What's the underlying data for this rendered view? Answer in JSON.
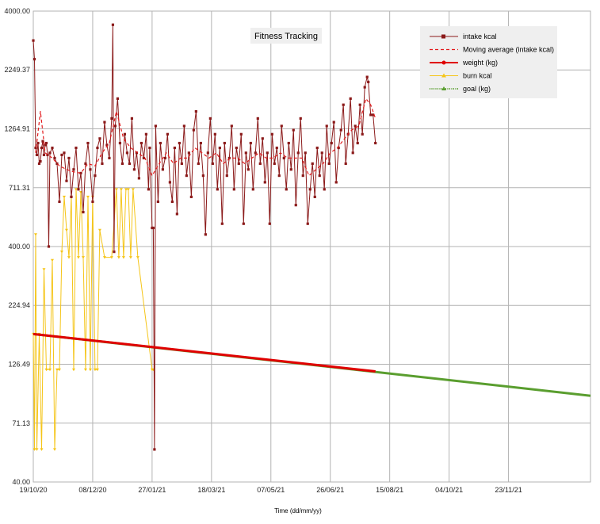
{
  "chart_data": {
    "type": "line",
    "title": "Fitness Tracking",
    "xlabel": "Time (dd/mm/yy)",
    "ylabel": "",
    "y_scale": "log",
    "ylim": [
      40,
      4000
    ],
    "x_range": [
      "2020-10-19",
      "2022-01-31"
    ],
    "grid": true,
    "legend_position": "top-right",
    "x_ticks": [
      "19/10/20",
      "08/12/20",
      "27/01/21",
      "18/03/21",
      "07/05/21",
      "26/06/21",
      "15/08/21",
      "04/10/21",
      "23/11/21"
    ],
    "y_ticks": [
      "40.00",
      "71.13",
      "126.49",
      "224.94",
      "400.00",
      "711.31",
      "1264.91",
      "2249.37",
      "4000.00"
    ],
    "series": [
      {
        "name": "intake kcal",
        "color": "#8b1a1a",
        "style": "solid-square-markers",
        "points": [
          [
            "2020-10-19",
            3000
          ],
          [
            "2020-10-20",
            2500
          ],
          [
            "2020-10-21",
            1050
          ],
          [
            "2020-10-22",
            980
          ],
          [
            "2020-10-23",
            1100
          ],
          [
            "2020-10-24",
            900
          ],
          [
            "2020-10-25",
            920
          ],
          [
            "2020-10-26",
            1050
          ],
          [
            "2020-10-27",
            1120
          ],
          [
            "2020-10-28",
            980
          ],
          [
            "2020-10-29",
            1080
          ],
          [
            "2020-10-30",
            1100
          ],
          [
            "2020-10-31",
            980
          ],
          [
            "2020-11-01",
            400
          ],
          [
            "2020-11-02",
            1000
          ],
          [
            "2020-11-04",
            1050
          ],
          [
            "2020-11-06",
            950
          ],
          [
            "2020-11-08",
            900
          ],
          [
            "2020-11-10",
            620
          ],
          [
            "2020-11-12",
            980
          ],
          [
            "2020-11-14",
            1000
          ],
          [
            "2020-11-16",
            760
          ],
          [
            "2020-11-18",
            950
          ],
          [
            "2020-11-20",
            650
          ],
          [
            "2020-11-22",
            850
          ],
          [
            "2020-11-24",
            1050
          ],
          [
            "2020-11-26",
            700
          ],
          [
            "2020-11-28",
            820
          ],
          [
            "2020-11-30",
            560
          ],
          [
            "2020-12-02",
            900
          ],
          [
            "2020-12-04",
            1100
          ],
          [
            "2020-12-06",
            850
          ],
          [
            "2020-12-08",
            620
          ],
          [
            "2020-12-10",
            800
          ],
          [
            "2020-12-12",
            1050
          ],
          [
            "2020-12-14",
            1150
          ],
          [
            "2020-12-16",
            900
          ],
          [
            "2020-12-18",
            1350
          ],
          [
            "2020-12-20",
            1080
          ],
          [
            "2020-12-22",
            950
          ],
          [
            "2020-12-24",
            1400
          ],
          [
            "2020-12-25",
            3500
          ],
          [
            "2020-12-26",
            380
          ],
          [
            "2020-12-27",
            1300
          ],
          [
            "2020-12-29",
            1700
          ],
          [
            "2020-12-31",
            1100
          ],
          [
            "2021-01-02",
            900
          ],
          [
            "2021-01-04",
            1200
          ],
          [
            "2021-01-06",
            1000
          ],
          [
            "2021-01-08",
            900
          ],
          [
            "2021-01-10",
            1400
          ],
          [
            "2021-01-12",
            850
          ],
          [
            "2021-01-14",
            1000
          ],
          [
            "2021-01-16",
            780
          ],
          [
            "2021-01-18",
            1100
          ],
          [
            "2021-01-20",
            950
          ],
          [
            "2021-01-22",
            1200
          ],
          [
            "2021-01-24",
            700
          ],
          [
            "2021-01-25",
            1050
          ],
          [
            "2021-01-27",
            480
          ],
          [
            "2021-01-28",
            480
          ],
          [
            "2021-01-29",
            55
          ],
          [
            "2021-01-30",
            1300
          ],
          [
            "2021-02-01",
            620
          ],
          [
            "2021-02-03",
            1100
          ],
          [
            "2021-02-05",
            850
          ],
          [
            "2021-02-07",
            950
          ],
          [
            "2021-02-09",
            1200
          ],
          [
            "2021-02-11",
            750
          ],
          [
            "2021-02-13",
            620
          ],
          [
            "2021-02-15",
            1050
          ],
          [
            "2021-02-17",
            550
          ],
          [
            "2021-02-19",
            1100
          ],
          [
            "2021-02-21",
            900
          ],
          [
            "2021-02-23",
            1300
          ],
          [
            "2021-02-25",
            800
          ],
          [
            "2021-02-27",
            1000
          ],
          [
            "2021-03-01",
            650
          ],
          [
            "2021-03-03",
            1250
          ],
          [
            "2021-03-05",
            1500
          ],
          [
            "2021-03-07",
            900
          ],
          [
            "2021-03-09",
            1100
          ],
          [
            "2021-03-11",
            800
          ],
          [
            "2021-03-13",
            450
          ],
          [
            "2021-03-15",
            1000
          ],
          [
            "2021-03-17",
            1400
          ],
          [
            "2021-03-19",
            900
          ],
          [
            "2021-03-21",
            1200
          ],
          [
            "2021-03-23",
            700
          ],
          [
            "2021-03-25",
            1050
          ],
          [
            "2021-03-27",
            500
          ],
          [
            "2021-03-29",
            1100
          ],
          [
            "2021-03-31",
            800
          ],
          [
            "2021-04-02",
            950
          ],
          [
            "2021-04-04",
            1300
          ],
          [
            "2021-04-06",
            700
          ],
          [
            "2021-04-08",
            1050
          ],
          [
            "2021-04-10",
            900
          ],
          [
            "2021-04-12",
            1200
          ],
          [
            "2021-04-14",
            500
          ],
          [
            "2021-04-16",
            1000
          ],
          [
            "2021-04-18",
            850
          ],
          [
            "2021-04-20",
            1100
          ],
          [
            "2021-04-22",
            700
          ],
          [
            "2021-04-24",
            1000
          ],
          [
            "2021-04-26",
            1400
          ],
          [
            "2021-04-28",
            900
          ],
          [
            "2021-04-30",
            1150
          ],
          [
            "2021-05-02",
            750
          ],
          [
            "2021-05-04",
            1000
          ],
          [
            "2021-05-06",
            500
          ],
          [
            "2021-05-08",
            1200
          ],
          [
            "2021-05-10",
            900
          ],
          [
            "2021-05-12",
            1050
          ],
          [
            "2021-05-14",
            800
          ],
          [
            "2021-05-16",
            1300
          ],
          [
            "2021-05-18",
            950
          ],
          [
            "2021-05-20",
            700
          ],
          [
            "2021-05-22",
            1100
          ],
          [
            "2021-05-24",
            850
          ],
          [
            "2021-05-26",
            1250
          ],
          [
            "2021-05-28",
            600
          ],
          [
            "2021-05-30",
            1000
          ],
          [
            "2021-06-01",
            1400
          ],
          [
            "2021-06-03",
            800
          ],
          [
            "2021-06-05",
            1000
          ],
          [
            "2021-06-07",
            500
          ],
          [
            "2021-06-09",
            700
          ],
          [
            "2021-06-11",
            900
          ],
          [
            "2021-06-13",
            650
          ],
          [
            "2021-06-15",
            1050
          ],
          [
            "2021-06-17",
            800
          ],
          [
            "2021-06-19",
            1000
          ],
          [
            "2021-06-21",
            700
          ],
          [
            "2021-06-23",
            1300
          ],
          [
            "2021-06-25",
            900
          ],
          [
            "2021-06-27",
            1100
          ],
          [
            "2021-06-29",
            1350
          ],
          [
            "2021-07-01",
            750
          ],
          [
            "2021-07-03",
            1050
          ],
          [
            "2021-07-05",
            1250
          ],
          [
            "2021-07-07",
            1600
          ],
          [
            "2021-07-09",
            900
          ],
          [
            "2021-07-11",
            1200
          ],
          [
            "2021-07-13",
            1700
          ],
          [
            "2021-07-15",
            1000
          ],
          [
            "2021-07-17",
            1300
          ],
          [
            "2021-07-19",
            1100
          ],
          [
            "2021-07-21",
            1600
          ],
          [
            "2021-07-23",
            1200
          ],
          [
            "2021-07-25",
            1900
          ],
          [
            "2021-07-27",
            2100
          ],
          [
            "2021-07-28",
            2000
          ],
          [
            "2021-07-30",
            1450
          ],
          [
            "2021-08-01",
            1450
          ],
          [
            "2021-08-03",
            1100
          ]
        ]
      },
      {
        "name": "Moving average (intake kcal)",
        "color": "#e31a1c",
        "style": "dashed",
        "points": [
          [
            "2020-10-21",
            1000
          ],
          [
            "2020-10-25",
            1500
          ],
          [
            "2020-10-29",
            1000
          ],
          [
            "2020-11-04",
            950
          ],
          [
            "2020-11-10",
            880
          ],
          [
            "2020-11-16",
            850
          ],
          [
            "2020-11-22",
            830
          ],
          [
            "2020-11-28",
            820
          ],
          [
            "2020-12-04",
            900
          ],
          [
            "2020-12-10",
            880
          ],
          [
            "2020-12-16",
            1000
          ],
          [
            "2020-12-22",
            1100
          ],
          [
            "2020-12-28",
            1500
          ],
          [
            "2021-01-03",
            1150
          ],
          [
            "2021-01-09",
            1050
          ],
          [
            "2021-01-15",
            1000
          ],
          [
            "2021-01-21",
            950
          ],
          [
            "2021-01-27",
            800
          ],
          [
            "2021-02-02",
            900
          ],
          [
            "2021-02-08",
            1000
          ],
          [
            "2021-02-14",
            900
          ],
          [
            "2021-02-20",
            950
          ],
          [
            "2021-02-26",
            950
          ],
          [
            "2021-03-04",
            1050
          ],
          [
            "2021-03-10",
            1000
          ],
          [
            "2021-03-16",
            950
          ],
          [
            "2021-03-22",
            1000
          ],
          [
            "2021-03-28",
            900
          ],
          [
            "2021-04-03",
            950
          ],
          [
            "2021-04-09",
            950
          ],
          [
            "2021-04-15",
            900
          ],
          [
            "2021-04-21",
            950
          ],
          [
            "2021-04-27",
            1000
          ],
          [
            "2021-05-03",
            950
          ],
          [
            "2021-05-09",
            950
          ],
          [
            "2021-05-15",
            1000
          ],
          [
            "2021-05-21",
            950
          ],
          [
            "2021-05-27",
            950
          ],
          [
            "2021-06-02",
            950
          ],
          [
            "2021-06-08",
            800
          ],
          [
            "2021-06-14",
            850
          ],
          [
            "2021-06-20",
            900
          ],
          [
            "2021-06-26",
            1000
          ],
          [
            "2021-07-02",
            1050
          ],
          [
            "2021-07-08",
            1150
          ],
          [
            "2021-07-14",
            1250
          ],
          [
            "2021-07-20",
            1300
          ],
          [
            "2021-07-26",
            1700
          ],
          [
            "2021-07-30",
            1600
          ],
          [
            "2021-08-03",
            1400
          ]
        ]
      },
      {
        "name": "weight (kg)",
        "color": "#e00000",
        "style": "solid-thick",
        "points": [
          [
            "2020-10-19",
            170
          ],
          [
            "2021-08-03",
            118
          ]
        ]
      },
      {
        "name": "burn kcal",
        "color": "#f5c518",
        "style": "solid-triangle-markers",
        "points": [
          [
            "2020-10-19",
            170
          ],
          [
            "2020-10-20",
            55
          ],
          [
            "2020-10-21",
            450
          ],
          [
            "2020-10-22",
            55
          ],
          [
            "2020-10-24",
            170
          ],
          [
            "2020-10-26",
            55
          ],
          [
            "2020-10-28",
            320
          ],
          [
            "2020-10-30",
            120
          ],
          [
            "2020-11-02",
            120
          ],
          [
            "2020-11-04",
            350
          ],
          [
            "2020-11-06",
            55
          ],
          [
            "2020-11-08",
            120
          ],
          [
            "2020-11-10",
            120
          ],
          [
            "2020-11-12",
            380
          ],
          [
            "2020-11-14",
            650
          ],
          [
            "2020-11-16",
            470
          ],
          [
            "2020-11-18",
            360
          ],
          [
            "2020-11-20",
            650
          ],
          [
            "2020-11-22",
            120
          ],
          [
            "2020-11-24",
            700
          ],
          [
            "2020-11-26",
            360
          ],
          [
            "2020-11-28",
            680
          ],
          [
            "2020-11-30",
            360
          ],
          [
            "2020-12-02",
            120
          ],
          [
            "2020-12-04",
            650
          ],
          [
            "2020-12-06",
            120
          ],
          [
            "2020-12-08",
            650
          ],
          [
            "2020-12-10",
            120
          ],
          [
            "2020-12-12",
            120
          ],
          [
            "2020-12-14",
            470
          ],
          [
            "2020-12-18",
            360
          ],
          [
            "2020-12-24",
            360
          ],
          [
            "2020-12-28",
            700
          ],
          [
            "2020-12-30",
            360
          ],
          [
            "2021-01-01",
            700
          ],
          [
            "2021-01-03",
            360
          ],
          [
            "2021-01-05",
            700
          ],
          [
            "2021-01-07",
            700
          ],
          [
            "2021-01-09",
            360
          ],
          [
            "2021-01-11",
            700
          ],
          [
            "2021-01-15",
            360
          ],
          [
            "2021-01-27",
            120
          ],
          [
            "2021-01-28",
            120
          ]
        ]
      },
      {
        "name": "goal (kg)",
        "color": "#5a9e2f",
        "style": "dotted",
        "points": [
          [
            "2020-10-19",
            170
          ],
          [
            "2022-01-31",
            93
          ]
        ]
      }
    ]
  }
}
